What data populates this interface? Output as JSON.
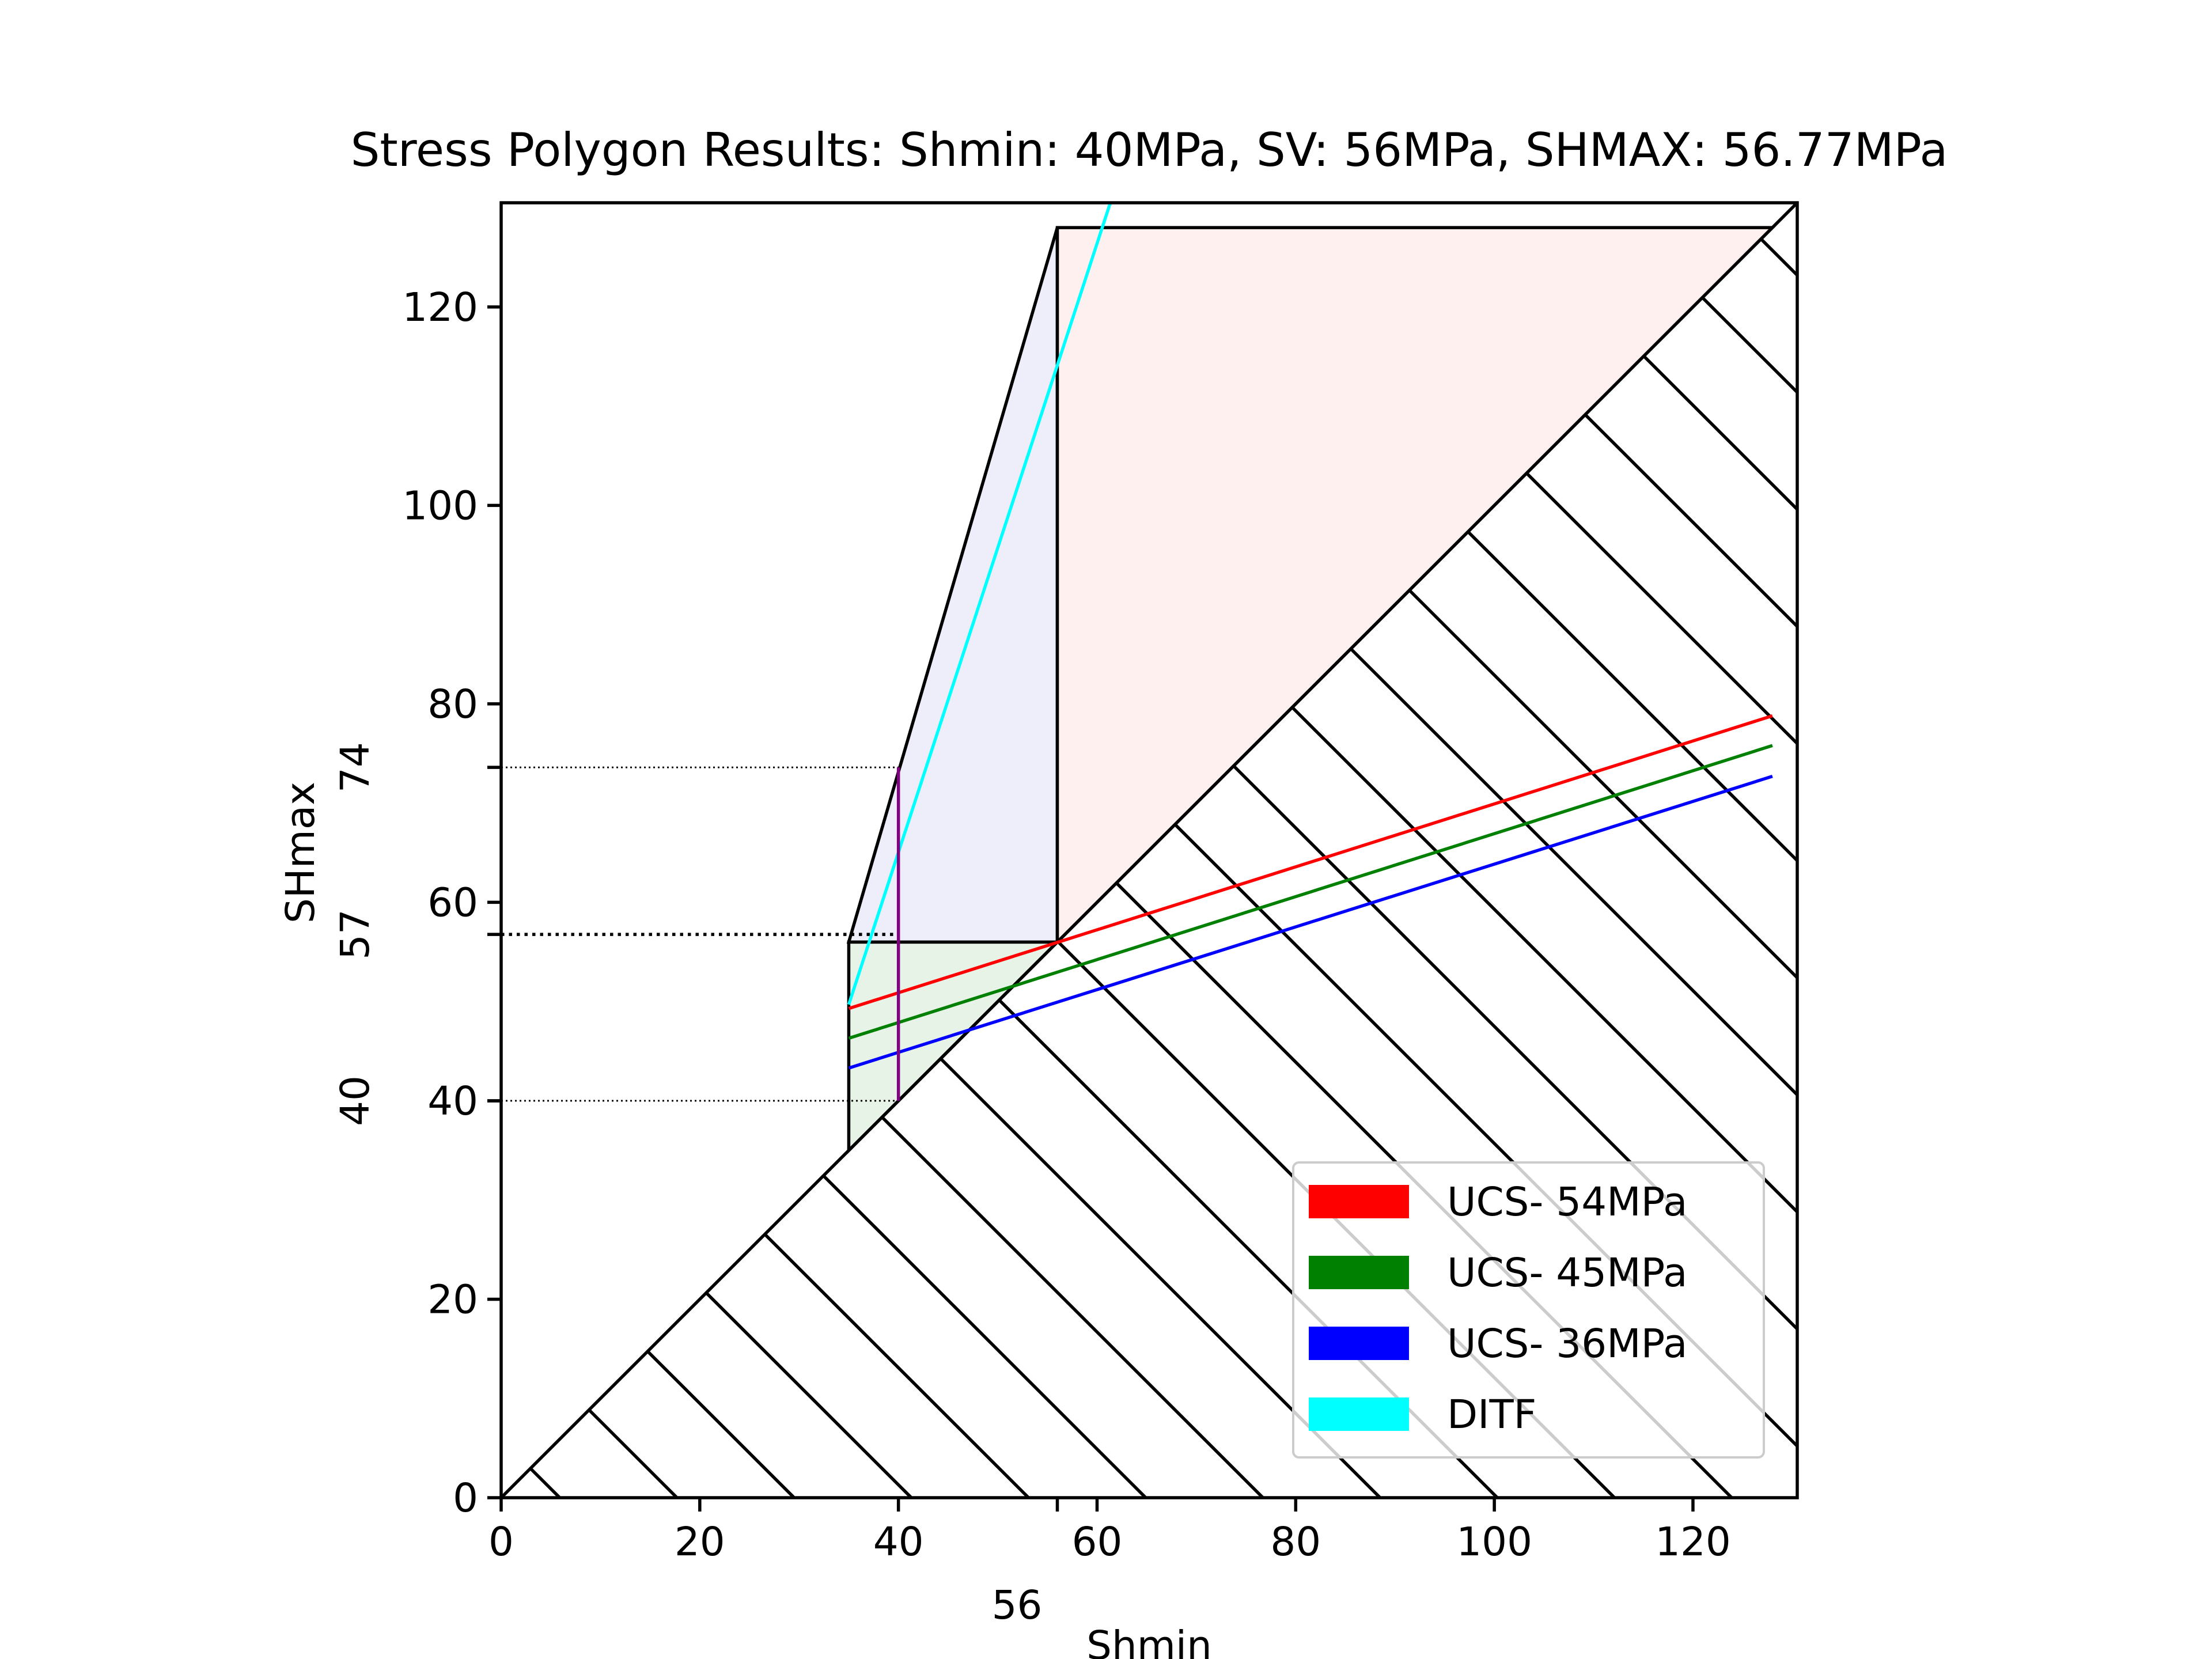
{
  "chart_data": {
    "type": "line",
    "title": "Stress Polygon Results: Shmin: 40MPa, SV: 56MPa, SHMAX: 56.77MPa",
    "xlabel": "Shmin",
    "ylabel": "SHmax",
    "xlim": [
      0,
      130.5
    ],
    "ylim": [
      0,
      130.5
    ],
    "x_ticks": [
      0,
      20,
      40,
      60,
      80,
      100,
      120
    ],
    "y_ticks": [
      0,
      20,
      40,
      60,
      80,
      100,
      120
    ],
    "x_ticks_text": [
      "0",
      "20",
      "40",
      "60",
      "80",
      "100",
      "120"
    ],
    "y_ticks_text": [
      "0",
      "20",
      "40",
      "60",
      "80",
      "100",
      "120"
    ],
    "extra_x_tick": {
      "value": 56,
      "label": "56"
    },
    "extra_y_ticks": [
      {
        "value": 40,
        "label": "40"
      },
      {
        "value": 56.77,
        "label": "57"
      },
      {
        "value": 73.6,
        "label": "74"
      }
    ],
    "grid": false,
    "legend_position": "lower right",
    "stress_polygon": {
      "sv": 56,
      "normal_fault_region": [
        [
          35,
          35
        ],
        [
          35,
          56
        ],
        [
          56,
          56
        ]
      ],
      "strike_slip_region": [
        [
          35,
          56
        ],
        [
          56,
          56
        ],
        [
          56,
          128
        ],
        [
          35,
          128
        ]
      ],
      "strike_slip_vertices": [
        [
          35,
          56
        ],
        [
          56,
          128
        ],
        [
          56,
          56
        ]
      ],
      "reverse_fault_region": [
        [
          56,
          56
        ],
        [
          56,
          128
        ],
        [
          128,
          128
        ]
      ],
      "region_colors": {
        "normal": "#e8f3e8",
        "strike_slip": "#eeeefb",
        "reverse": "#fdf0ee"
      }
    },
    "hatched_region": {
      "lower_triangle": [
        [
          0,
          0
        ],
        [
          130.5,
          130.5
        ],
        [
          130.5,
          0
        ]
      ]
    },
    "series": [
      {
        "name": "UCS- 54MPa",
        "color": "#ff0000",
        "x": [
          35,
          128
        ],
        "y": [
          49.3,
          78.8
        ]
      },
      {
        "name": "UCS- 45MPa",
        "color": "#008000",
        "x": [
          35,
          128
        ],
        "y": [
          46.3,
          75.8
        ]
      },
      {
        "name": "UCS- 36MPa",
        "color": "#0000ff",
        "x": [
          35,
          128
        ],
        "y": [
          43.3,
          72.7
        ]
      },
      {
        "name": "DITF",
        "color": "#00ffff",
        "x": [
          35,
          61.5
        ],
        "y": [
          49.7,
          131
        ]
      }
    ],
    "shmin_line": {
      "x": 40,
      "y": [
        40,
        73.6
      ],
      "color": "#800080"
    },
    "reference_lines": [
      {
        "y": 40,
        "style": "dotted-thin"
      },
      {
        "y": 56.77,
        "style": "dotted-thick"
      },
      {
        "y": 73.6,
        "style": "dotted-thin"
      }
    ]
  }
}
